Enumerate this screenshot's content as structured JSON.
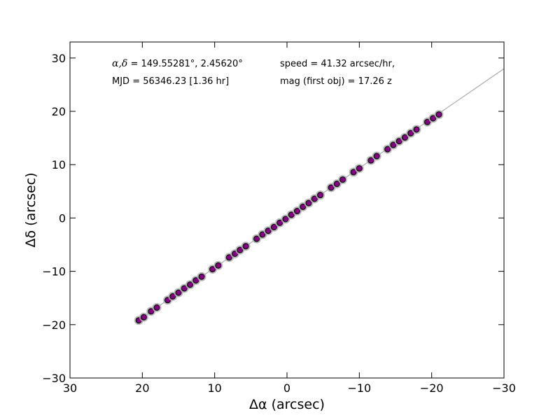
{
  "chart_data": {
    "type": "scatter",
    "xlabel": "Δα (arcsec)",
    "ylabel": "Δδ (arcsec)",
    "xlim": [
      30,
      -30
    ],
    "ylim": [
      -30,
      33
    ],
    "xticks": [
      30,
      20,
      10,
      0,
      -10,
      -20,
      -30
    ],
    "yticks": [
      -30,
      -20,
      -10,
      0,
      10,
      20,
      30
    ],
    "xtick_labels": [
      "30",
      "20",
      "10",
      "0",
      "−10",
      "−20",
      "−30"
    ],
    "ytick_labels": [
      "−30",
      "−20",
      "−10",
      "0",
      "10",
      "20",
      "30"
    ],
    "grid": false,
    "annotations": {
      "coords_symbol": "α,δ",
      "coords_value": " = 149.55281°, 2.45620°",
      "mjd": "MJD = 56346.23 [1.36 hr]",
      "speed": "speed = 41.32 arcsec/hr,",
      "mag": "mag (first obj) = 17.26 z"
    },
    "fit_line": {
      "color": "#aaaaaa",
      "points": [
        [
          20.5,
          -19.1
        ],
        [
          -30,
          28.0
        ]
      ]
    },
    "series": [
      {
        "marker_color": "#800080",
        "marker_edge": "#000000",
        "halo_color": "#b0b0b0",
        "points": [
          [
            20.5,
            -19.2
          ],
          [
            19.8,
            -18.6
          ],
          [
            18.8,
            -17.5
          ],
          [
            18.0,
            -16.8
          ],
          [
            16.5,
            -15.4
          ],
          [
            15.8,
            -14.7
          ],
          [
            15.0,
            -14.0
          ],
          [
            14.2,
            -13.2
          ],
          [
            13.4,
            -12.5
          ],
          [
            12.6,
            -11.7
          ],
          [
            11.8,
            -11.0
          ],
          [
            10.3,
            -9.6
          ],
          [
            9.5,
            -8.9
          ],
          [
            8.0,
            -7.4
          ],
          [
            7.2,
            -6.7
          ],
          [
            6.5,
            -6.0
          ],
          [
            5.7,
            -5.3
          ],
          [
            4.2,
            -3.9
          ],
          [
            3.4,
            -3.1
          ],
          [
            2.6,
            -2.4
          ],
          [
            1.8,
            -1.7
          ],
          [
            1.0,
            -0.9
          ],
          [
            0.2,
            -0.2
          ],
          [
            -0.6,
            0.6
          ],
          [
            -1.4,
            1.3
          ],
          [
            -2.2,
            2.1
          ],
          [
            -3.0,
            2.8
          ],
          [
            -3.8,
            3.6
          ],
          [
            -4.6,
            4.3
          ],
          [
            -6.1,
            5.7
          ],
          [
            -6.9,
            6.4
          ],
          [
            -7.7,
            7.2
          ],
          [
            -9.2,
            8.6
          ],
          [
            -10.0,
            9.3
          ],
          [
            -11.6,
            10.8
          ],
          [
            -12.4,
            11.6
          ],
          [
            -13.9,
            12.9
          ],
          [
            -14.7,
            13.7
          ],
          [
            -15.5,
            14.4
          ],
          [
            -16.3,
            15.1
          ],
          [
            -17.1,
            15.9
          ],
          [
            -17.9,
            16.6
          ],
          [
            -19.4,
            18.0
          ],
          [
            -20.2,
            18.7
          ],
          [
            -21.0,
            19.4
          ]
        ]
      }
    ]
  }
}
